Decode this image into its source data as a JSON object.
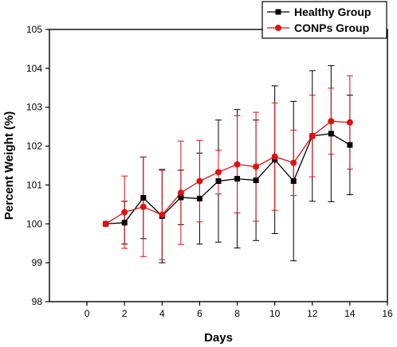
{
  "chart_data": {
    "type": "line",
    "xlabel": "Days",
    "ylabel": "Percent Weight (%)",
    "xlim": [
      -2,
      16
    ],
    "ylim": [
      98,
      105
    ],
    "xticks": [
      0,
      2,
      4,
      6,
      8,
      10,
      12,
      14,
      16
    ],
    "yticks": [
      98,
      99,
      100,
      101,
      102,
      103,
      104,
      105
    ],
    "x": [
      1,
      2,
      3,
      4,
      5,
      6,
      7,
      8,
      9,
      10,
      11,
      12,
      13,
      14
    ],
    "legend_position": "top-right",
    "grid": false,
    "series": [
      {
        "name": "Healthy Group",
        "color": "#000000",
        "marker": "square",
        "values": [
          100.0,
          100.03,
          100.67,
          100.2,
          100.68,
          100.65,
          101.1,
          101.16,
          101.12,
          101.65,
          101.1,
          102.26,
          102.32,
          102.03
        ],
        "errors": [
          0.0,
          0.55,
          1.05,
          1.2,
          0.7,
          1.17,
          1.57,
          1.78,
          1.55,
          1.9,
          2.05,
          1.68,
          1.75,
          1.28
        ]
      },
      {
        "name": "CONPs Group",
        "color": "#e01010",
        "marker": "circle",
        "values": [
          100.0,
          100.3,
          100.44,
          100.23,
          100.8,
          101.1,
          101.33,
          101.53,
          101.47,
          101.73,
          101.57,
          102.26,
          102.64,
          102.61
        ],
        "errors": [
          0.0,
          0.93,
          1.28,
          1.15,
          1.33,
          1.05,
          0.56,
          1.25,
          1.4,
          1.38,
          0.84,
          1.05,
          0.85,
          1.2
        ]
      }
    ]
  }
}
